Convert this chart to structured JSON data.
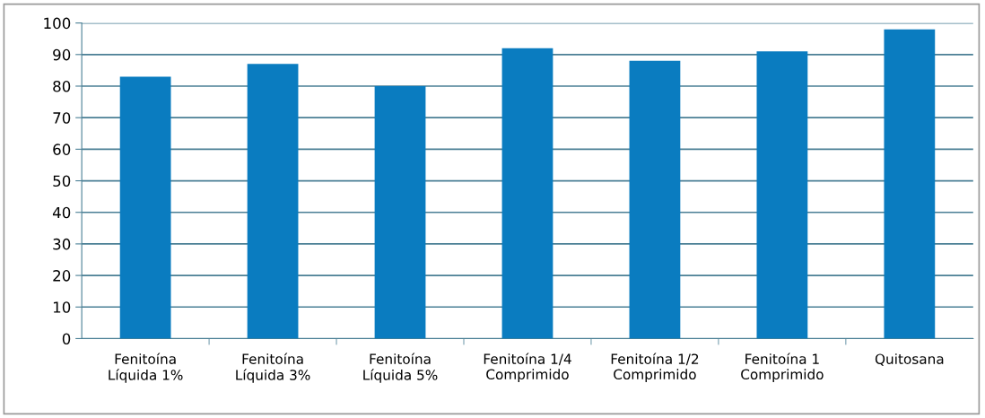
{
  "chart_data": {
    "type": "bar",
    "categories": [
      "Fenitoína\nLíquida 1%",
      "Fenitoína\nLíquida 3%",
      "Fenitoína\nLíquida 5%",
      "Fenitoína 1/4\nComprimido",
      "Fenitoína 1/2\nComprimido",
      "Fenitoína 1\nComprimido",
      "Quitosana"
    ],
    "values": [
      83,
      87,
      80,
      92,
      88,
      91,
      98
    ],
    "color": "#0a7cc0",
    "ylim": [
      0,
      100
    ],
    "yticks": [
      0,
      10,
      20,
      30,
      40,
      50,
      60,
      70,
      80,
      90,
      100
    ],
    "grid": "y"
  }
}
